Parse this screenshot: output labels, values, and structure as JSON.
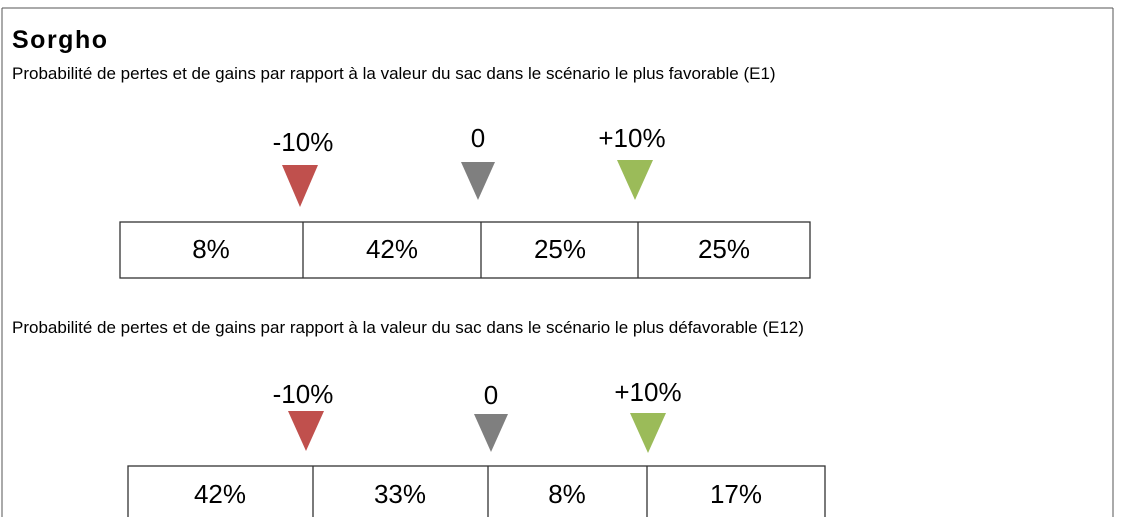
{
  "title": "Sorgho",
  "sections": [
    {
      "caption": "Probabilité de pertes et de gains par rapport à la valeur du sac dans le scénario le plus favorable (E1)",
      "markers": [
        "-10%",
        "0",
        "+10%"
      ],
      "cells": [
        "8%",
        "42%",
        "25%",
        "25%"
      ]
    },
    {
      "caption": "Probabilité de pertes et de gains par rapport à la valeur du sac dans le scénario le plus défavorable (E12)",
      "markers": [
        "-10%",
        "0",
        "+10%"
      ],
      "cells": [
        "42%",
        "33%",
        "8%",
        "17%"
      ]
    }
  ]
}
